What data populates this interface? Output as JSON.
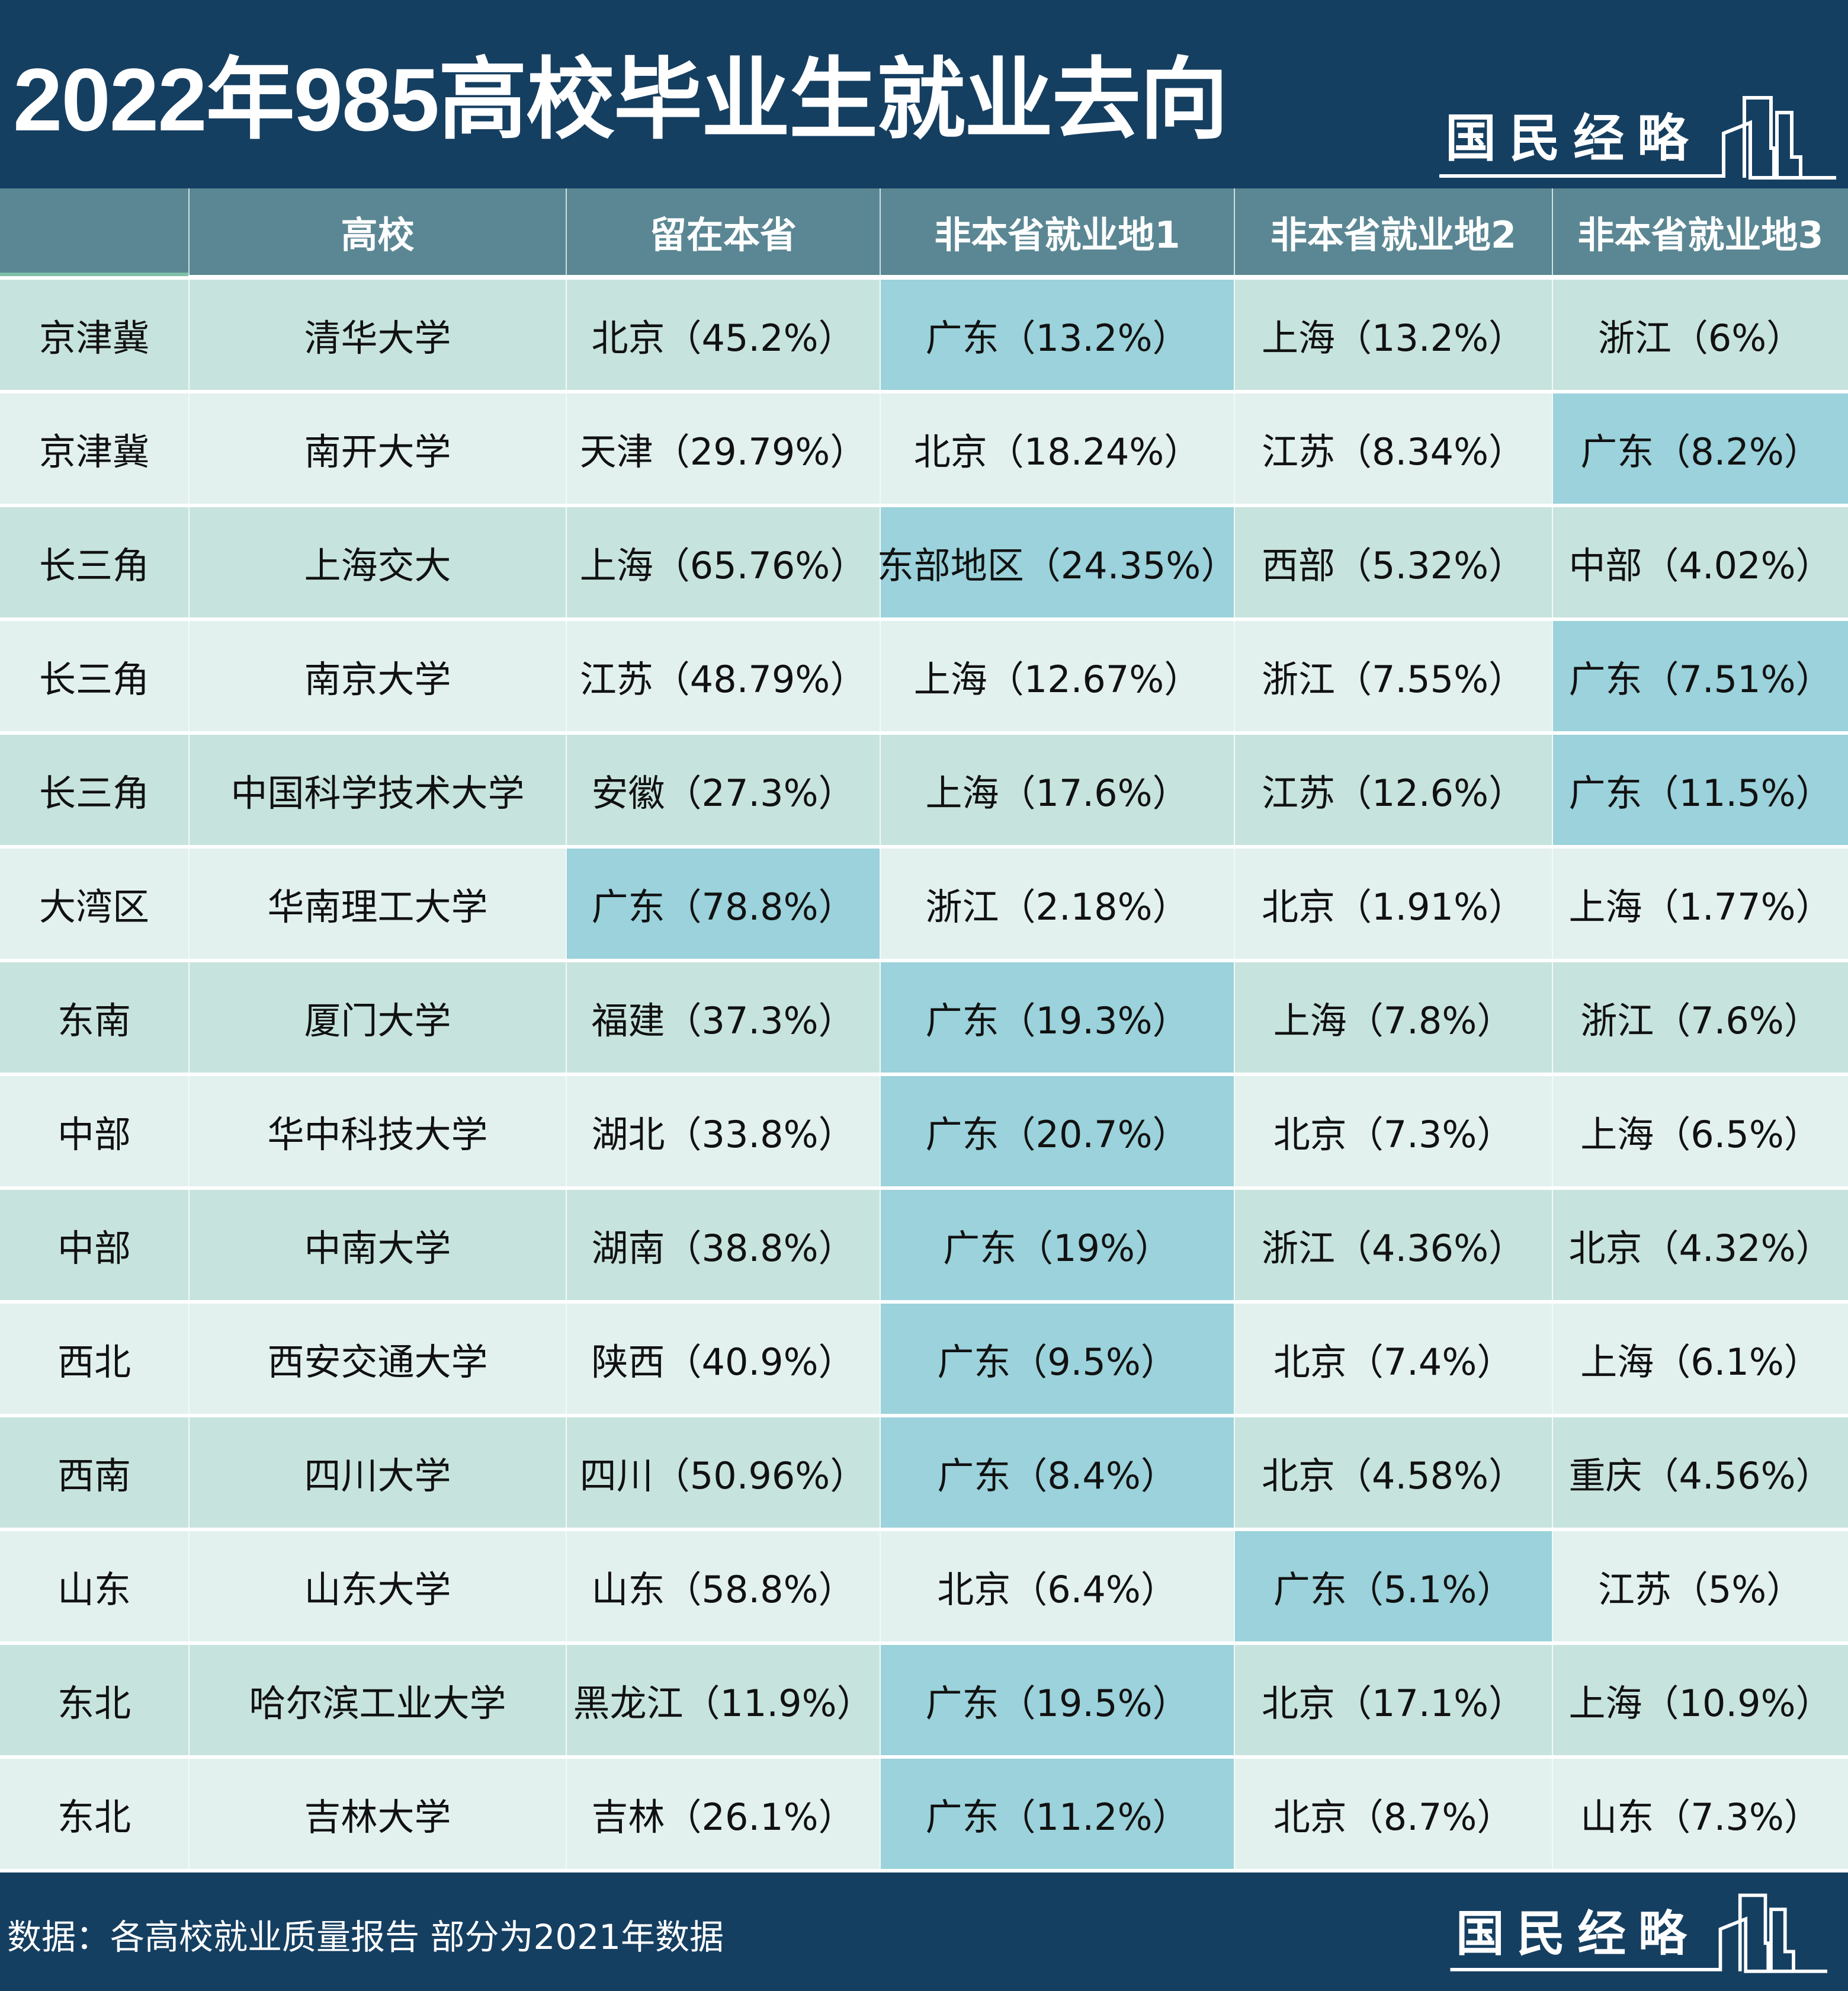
{
  "title": "2022年985高校毕业生就业去向",
  "brand": "国民经略",
  "colors": {
    "navy": "#153f61",
    "header": "#5a8793",
    "row_dark": "#c7e3dd",
    "row_light": "#e2f1ee",
    "highlight": "#9bd2db"
  },
  "table": {
    "headers": [
      "",
      "高校",
      "留在本省",
      "非本省就业地1",
      "非本省就业地2",
      "非本省就业地3"
    ],
    "rows": [
      {
        "region": "京津冀",
        "school": "清华大学",
        "home": "北京（45.2%）",
        "d1": "广东（13.2%）",
        "d2": "上海（13.2%）",
        "d3": "浙江（6%）",
        "hl": [
          3
        ]
      },
      {
        "region": "京津冀",
        "school": "南开大学",
        "home": "天津（29.79%）",
        "d1": "北京（18.24%）",
        "d2": "江苏（8.34%）",
        "d3": "广东（8.2%）",
        "hl": [
          5
        ]
      },
      {
        "region": "长三角",
        "school": "上海交大",
        "home": "上海（65.76%）",
        "d1": "东部地区（24.35%）",
        "d2": "西部（5.32%）",
        "d3": "中部（4.02%）",
        "hl": [
          3
        ]
      },
      {
        "region": "长三角",
        "school": "南京大学",
        "home": "江苏（48.79%）",
        "d1": "上海（12.67%）",
        "d2": "浙江（7.55%）",
        "d3": "广东（7.51%）",
        "hl": [
          5
        ]
      },
      {
        "region": "长三角",
        "school": "中国科学技术大学",
        "home": "安徽（27.3%）",
        "d1": "上海（17.6%）",
        "d2": "江苏（12.6%）",
        "d3": "广东（11.5%）",
        "hl": [
          5
        ]
      },
      {
        "region": "大湾区",
        "school": "华南理工大学",
        "home": "广东（78.8%）",
        "d1": "浙江（2.18%）",
        "d2": "北京（1.91%）",
        "d3": "上海（1.77%）",
        "hl": [
          2
        ]
      },
      {
        "region": "东南",
        "school": "厦门大学",
        "home": "福建（37.3%）",
        "d1": "广东（19.3%）",
        "d2": "上海（7.8%）",
        "d3": "浙江（7.6%）",
        "hl": [
          3
        ]
      },
      {
        "region": "中部",
        "school": "华中科技大学",
        "home": "湖北（33.8%）",
        "d1": "广东（20.7%）",
        "d2": "北京（7.3%）",
        "d3": "上海（6.5%）",
        "hl": [
          3
        ]
      },
      {
        "region": "中部",
        "school": "中南大学",
        "home": "湖南（38.8%）",
        "d1": "广东（19%）",
        "d2": "浙江（4.36%）",
        "d3": "北京（4.32%）",
        "hl": [
          3
        ]
      },
      {
        "region": "西北",
        "school": "西安交通大学",
        "home": "陕西（40.9%）",
        "d1": "广东（9.5%）",
        "d2": "北京（7.4%）",
        "d3": "上海（6.1%）",
        "hl": [
          3
        ]
      },
      {
        "region": "西南",
        "school": "四川大学",
        "home": "四川（50.96%）",
        "d1": "广东（8.4%）",
        "d2": "北京（4.58%）",
        "d3": "重庆（4.56%）",
        "hl": [
          3
        ]
      },
      {
        "region": "山东",
        "school": "山东大学",
        "home": "山东（58.8%）",
        "d1": "北京（6.4%）",
        "d2": "广东（5.1%）",
        "d3": "江苏（5%）",
        "hl": [
          4
        ]
      },
      {
        "region": "东北",
        "school": "哈尔滨工业大学",
        "home": "黑龙江（11.9%）",
        "d1": "广东（19.5%）",
        "d2": "北京（17.1%）",
        "d3": "上海（10.9%）",
        "hl": [
          3
        ]
      },
      {
        "region": "东北",
        "school": "吉林大学",
        "home": "吉林（26.1%）",
        "d1": "广东（11.2%）",
        "d2": "北京（8.7%）",
        "d3": "山东（7.3%）",
        "hl": [
          3
        ]
      }
    ]
  },
  "footer": {
    "source": "数据：各高校就业质量报告  部分为2021年数据"
  }
}
